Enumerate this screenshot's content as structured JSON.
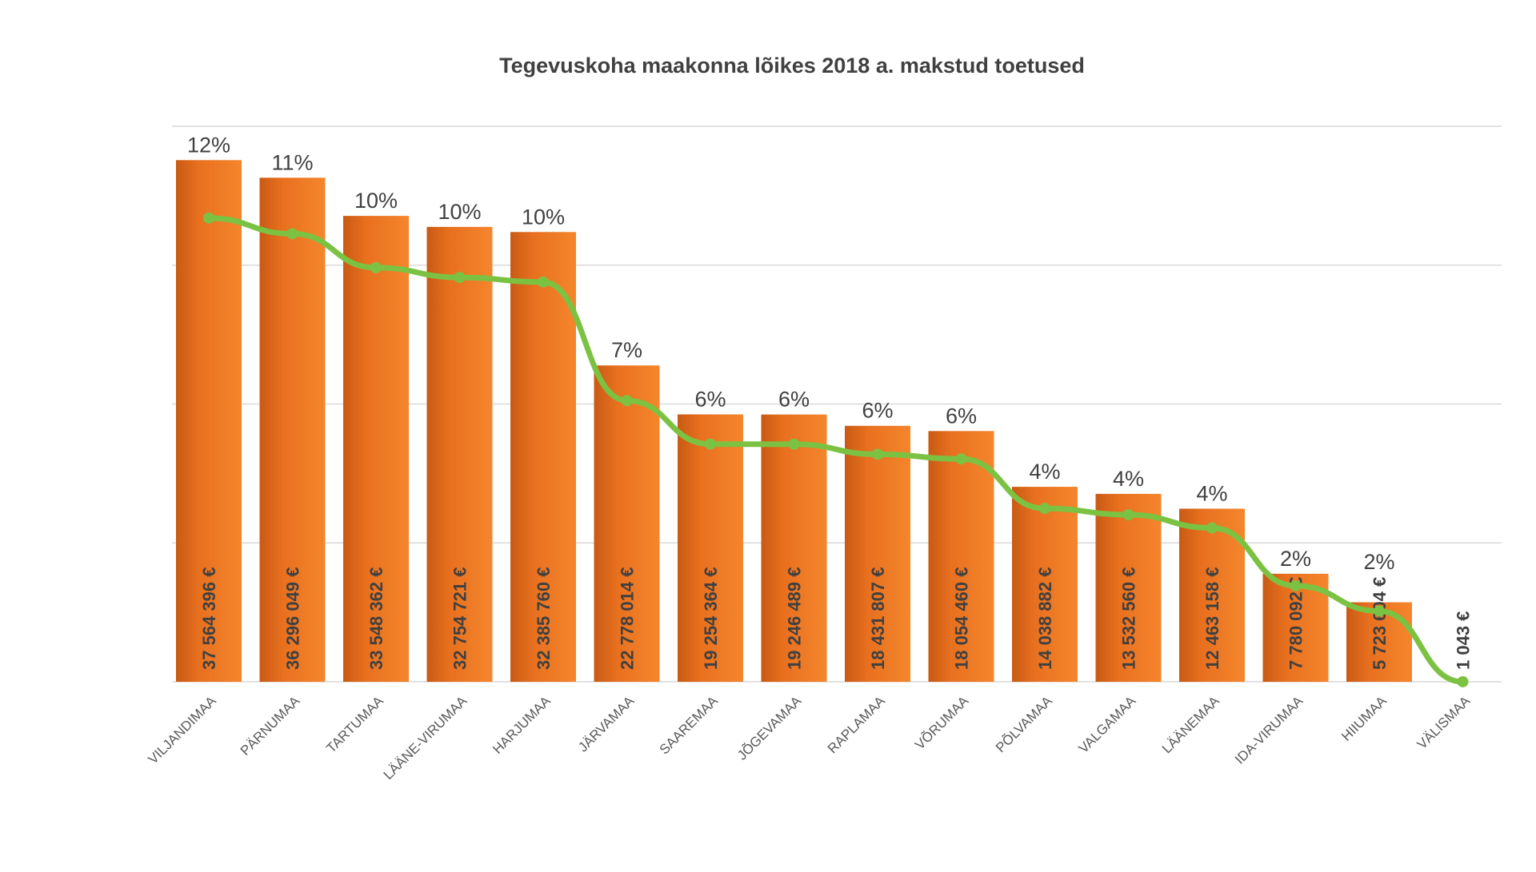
{
  "chart_data": {
    "type": "bar",
    "title": "Tegevuskoha maakonna lõikes 2018 a. makstud toetused",
    "categories": [
      "VILJANDIMAA",
      "PÄRNUMAA",
      "TARTUMAA",
      "LÄÄNE-VIRUMAA",
      "HARJUMAA",
      "JÄRVAMAA",
      "SAAREMAA",
      "JÕGEVAMAA",
      "RAPLAMAA",
      "VÕRUMAA",
      "PÕLVAMAA",
      "VALGAMAA",
      "LÄÄNEMAA",
      "IDA-VIRUMAA",
      "HIIUMAA",
      "VÄLISMAA"
    ],
    "values": [
      37564396,
      36296049,
      33548362,
      32754721,
      32385760,
      22778014,
      19254364,
      19246489,
      18431807,
      18054460,
      14038882,
      13532560,
      12463158,
      7780092,
      5723604,
      1043
    ],
    "value_labels": [
      "37 564 396 €",
      "36 296 049 €",
      "33 548 362 €",
      "32 754 721 €",
      "32 385 760 €",
      "22 778 014 €",
      "19 254 364 €",
      "19 246 489 €",
      "18 431 807 €",
      "18 054 460 €",
      "14 038 882 €",
      "13 532 560 €",
      "12 463 158 €",
      "7 780 092 €",
      "5 723 604 €",
      "1 043 €"
    ],
    "percent_labels": [
      "12%",
      "11%",
      "10%",
      "10%",
      "10%",
      "7%",
      "6%",
      "6%",
      "6%",
      "6%",
      "4%",
      "4%",
      "4%",
      "2%",
      "2%",
      ""
    ],
    "bar_axis_range": [
      0,
      40000000
    ],
    "line_axis_range": [
      0,
      45000000
    ],
    "gridlines": [
      0,
      10000000,
      20000000,
      30000000,
      40000000
    ],
    "grid": true,
    "axes_visible": false,
    "legend": "none",
    "colors": {
      "bar": "#e8701f",
      "bar_dark": "#c85a12",
      "line": "#7cc242",
      "grid": "#d9d9d9",
      "text": "#404040"
    }
  }
}
